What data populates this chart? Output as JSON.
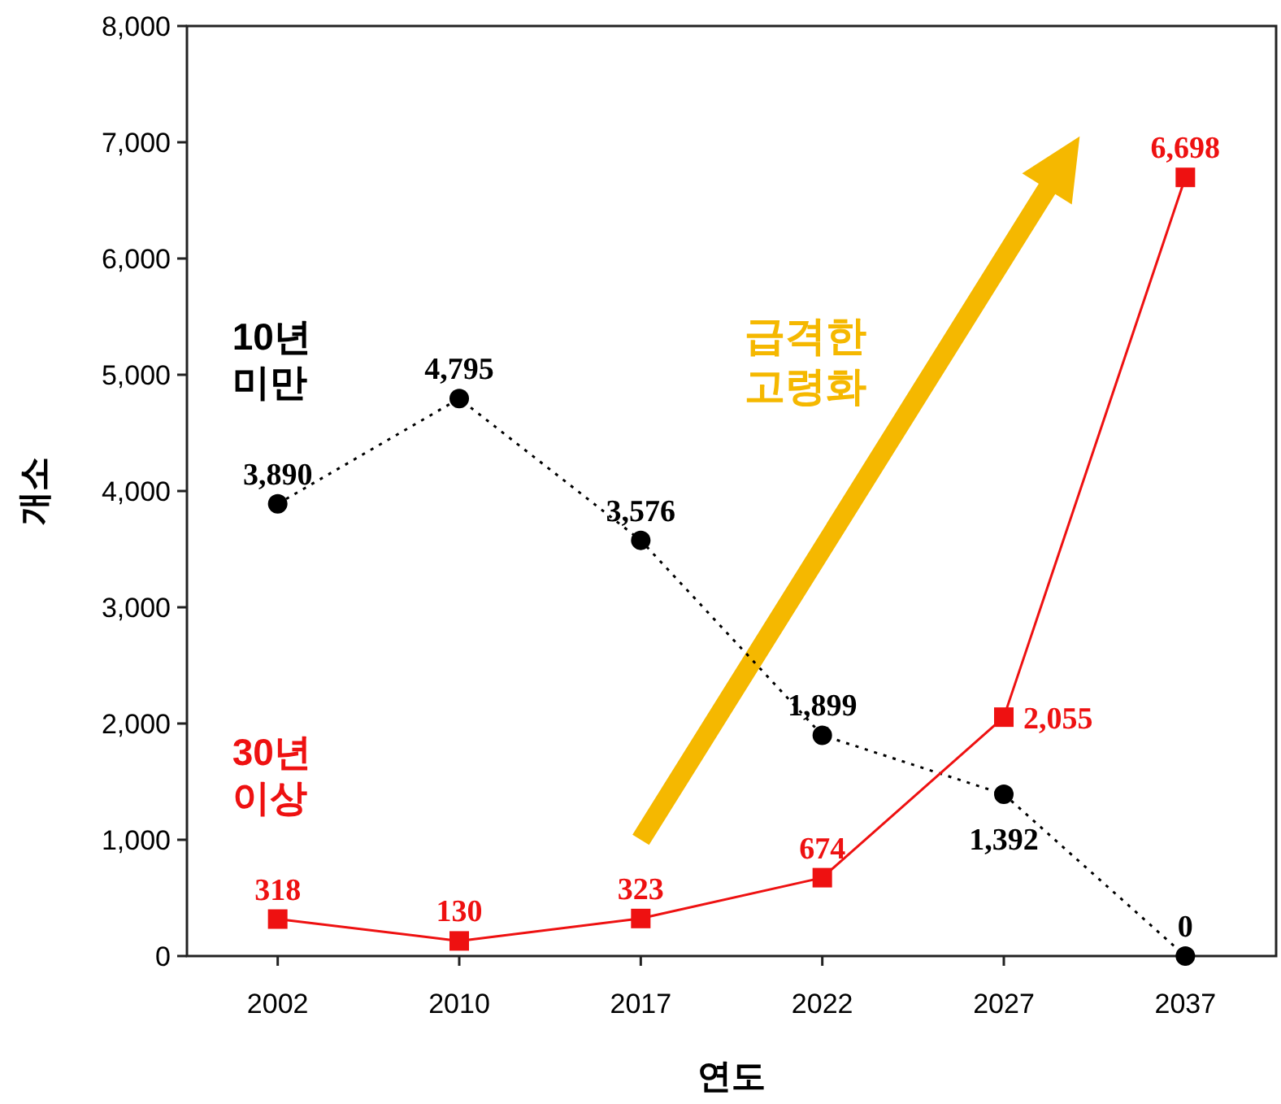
{
  "chart_data": {
    "type": "line",
    "xlabel": "연도",
    "ylabel": "개소",
    "categories": [
      "2002",
      "2010",
      "2017",
      "2022",
      "2027",
      "2037"
    ],
    "series": [
      {
        "name": "10년 미만",
        "color": "#000000",
        "marker": "circle",
        "line_style": "dotted",
        "values": [
          3890,
          4795,
          3576,
          1899,
          1392,
          0
        ],
        "value_labels": [
          "3,890",
          "4,795",
          "3,576",
          "1,899",
          "1,392",
          "0"
        ]
      },
      {
        "name": "30년 이상",
        "color": "#ee1111",
        "marker": "square",
        "line_style": "solid",
        "values": [
          318,
          130,
          323,
          674,
          2055,
          6698
        ],
        "value_labels": [
          "318",
          "130",
          "323",
          "674",
          "2,055",
          "6,698"
        ]
      }
    ],
    "ylim": [
      0,
      8000
    ],
    "yticks": [
      0,
      {
        "value": 1000,
        "label": "1,000"
      },
      {
        "value": 2000,
        "label": "2,000"
      },
      {
        "value": 3000,
        "label": "3,000"
      },
      {
        "value": 4000,
        "label": "4,000"
      },
      {
        "value": 5000,
        "label": "5,000"
      },
      {
        "value": 6000,
        "label": "6,000"
      },
      {
        "value": 7000,
        "label": "7,000"
      },
      {
        "value": 8000,
        "label": "8,000"
      }
    ],
    "grid": false,
    "annotations": [
      "급격한 고령화"
    ]
  }
}
